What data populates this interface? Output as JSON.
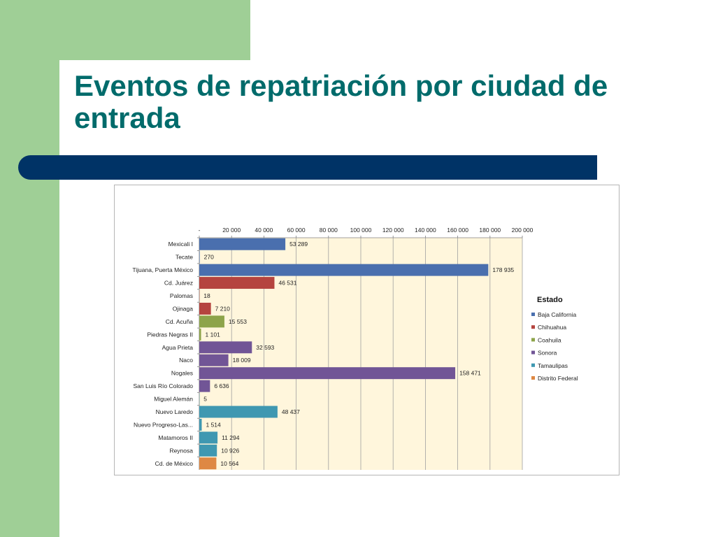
{
  "slide": {
    "title": "Eventos de repatriación por ciudad de entrada"
  },
  "chart_data": {
    "type": "bar",
    "orientation": "horizontal",
    "title": "",
    "xlabel": "",
    "ylabel": "",
    "xlim": [
      0,
      200000
    ],
    "x_ticks": [
      {
        "value": 0,
        "label": "-"
      },
      {
        "value": 20000,
        "label": "20 000"
      },
      {
        "value": 40000,
        "label": "40 000"
      },
      {
        "value": 60000,
        "label": "60 000"
      },
      {
        "value": 80000,
        "label": "80 000"
      },
      {
        "value": 100000,
        "label": "100 000"
      },
      {
        "value": 120000,
        "label": "120 000"
      },
      {
        "value": 140000,
        "label": "140 000"
      },
      {
        "value": 160000,
        "label": "160 000"
      },
      {
        "value": 180000,
        "label": "180 000"
      },
      {
        "value": 200000,
        "label": "200 000"
      }
    ],
    "grid": true,
    "plot_background": "#fff6dc",
    "legend": {
      "title": "Estado",
      "position": "right",
      "entries": [
        {
          "name": "Baja California",
          "color": "#4a6fae"
        },
        {
          "name": "Chihuahua",
          "color": "#b5443f"
        },
        {
          "name": "Coahuila",
          "color": "#8da44a"
        },
        {
          "name": "Sonora",
          "color": "#715596"
        },
        {
          "name": "Tamaulipas",
          "color": "#3f98b1"
        },
        {
          "name": "Distrito Federal",
          "color": "#de8843"
        }
      ]
    },
    "bars": [
      {
        "category": "Mexicali I",
        "value": 53289,
        "label": "53 289",
        "state": "Baja California"
      },
      {
        "category": "Tecate",
        "value": 270,
        "label": "270",
        "state": "Baja California"
      },
      {
        "category": "Tijuana, Puerta México",
        "value": 178935,
        "label": "178 935",
        "state": "Baja California"
      },
      {
        "category": "Cd. Juárez",
        "value": 46531,
        "label": "46 531",
        "state": "Chihuahua"
      },
      {
        "category": "Palomas",
        "value": 18,
        "label": "18",
        "state": "Chihuahua"
      },
      {
        "category": "Ojinaga",
        "value": 7210,
        "label": "7 210",
        "state": "Chihuahua"
      },
      {
        "category": "Cd. Acuña",
        "value": 15553,
        "label": "15 553",
        "state": "Coahuila"
      },
      {
        "category": "Piedras  Negras II",
        "value": 1101,
        "label": "1 101",
        "state": "Coahuila"
      },
      {
        "category": "Agua Prieta",
        "value": 32593,
        "label": "32 593",
        "state": "Sonora"
      },
      {
        "category": "Naco",
        "value": 18009,
        "label": "18 009",
        "state": "Sonora"
      },
      {
        "category": "Nogales",
        "value": 158471,
        "label": "158 471",
        "state": "Sonora"
      },
      {
        "category": "San Luis Río Colorado",
        "value": 6636,
        "label": "6 636",
        "state": "Sonora"
      },
      {
        "category": "Miguel Alemán",
        "value": 5,
        "label": "5",
        "state": "Tamaulipas"
      },
      {
        "category": "Nuevo Laredo",
        "value": 48437,
        "label": "48 437",
        "state": "Tamaulipas"
      },
      {
        "category": "Nuevo Progreso-Las...",
        "value": 1514,
        "label": "1 514",
        "state": "Tamaulipas"
      },
      {
        "category": "Matamoros II",
        "value": 11294,
        "label": "11 294",
        "state": "Tamaulipas"
      },
      {
        "category": "Reynosa",
        "value": 10926,
        "label": "10 926",
        "state": "Tamaulipas"
      },
      {
        "category": "Cd. de México",
        "value": 10564,
        "label": "10 564",
        "state": "Distrito Federal"
      }
    ]
  }
}
